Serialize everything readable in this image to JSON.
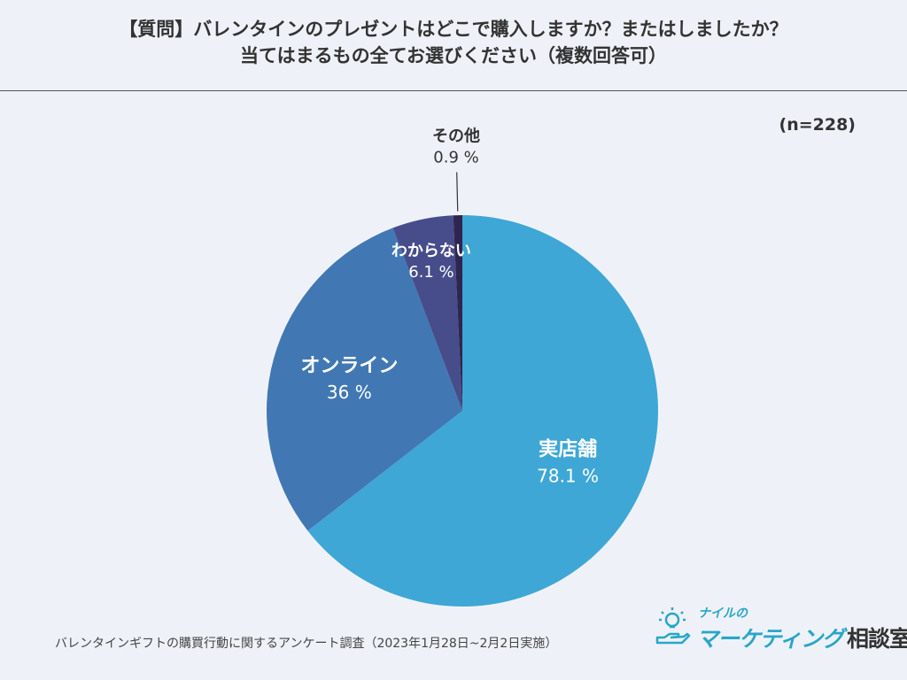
{
  "header": {
    "title_line1": "【質問】バレンタインのプレゼントはどこで購入しますか？またはしましたか？",
    "title_line2": "当てはまるもの全てお選びください（複数回答可）",
    "sample_size": "(n=228)"
  },
  "chart_data": {
    "type": "pie",
    "title": "【質問】バレンタインのプレゼントはどこで購入しますか？またはしましたか？当てはまるもの全てお選びください（複数回答可）",
    "unit": "%",
    "slices": [
      {
        "label": "実店舗",
        "value": 78.1,
        "value_label": "78.1 %",
        "color": "#3ea7d6"
      },
      {
        "label": "オンライン",
        "value": 36,
        "value_label": "36 %",
        "color": "#4178b3"
      },
      {
        "label": "わからない",
        "value": 6.1,
        "value_label": "6.1 %",
        "color": "#474d8a"
      },
      {
        "label": "その他",
        "value": 0.9,
        "value_label": "0.9 %",
        "color": "#2f2550"
      }
    ]
  },
  "footer": {
    "source": "バレンタインギフトの購買行動に関するアンケート調査（2023年1月28日~2月2日実施）"
  },
  "logo": {
    "small_text": "ナイルの",
    "main_text_accent": "マーケティング",
    "main_text_rest": "相談室",
    "accent_color": "#29a6c9"
  }
}
